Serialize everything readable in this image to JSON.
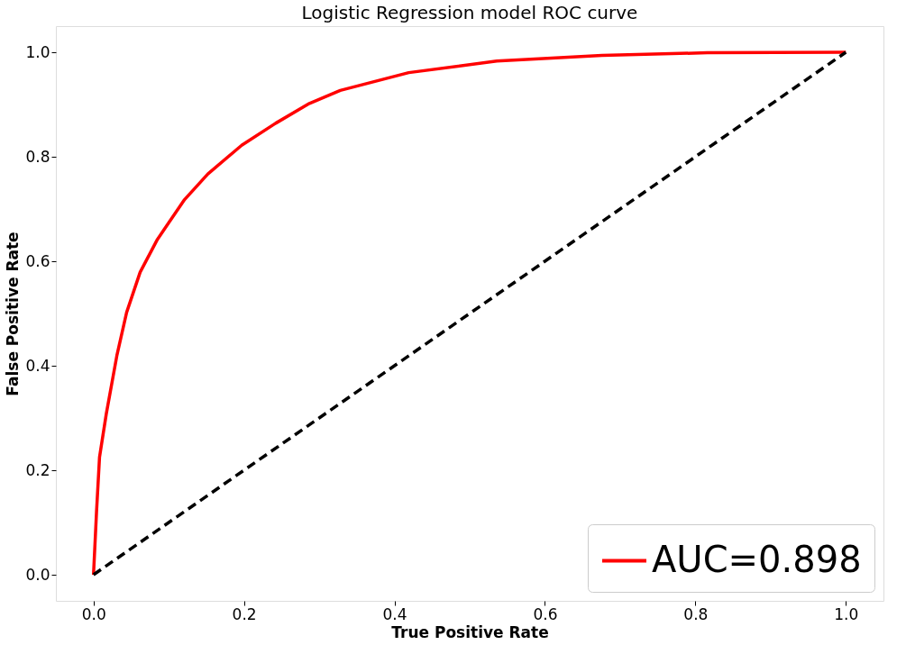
{
  "chart_data": {
    "type": "line",
    "title": "Logistic Regression model ROC curve",
    "xlabel": "True Positive Rate",
    "ylabel": "False Positive Rate",
    "xlim": [
      -0.05,
      1.05
    ],
    "ylim": [
      -0.05,
      1.05
    ],
    "xticks": [
      {
        "value": 0,
        "label": "0.0"
      },
      0.2,
      0.4,
      0.6,
      0.8,
      {
        "value": 1,
        "label": "1.0"
      }
    ],
    "yticks": [
      {
        "value": 0,
        "label": "0.0"
      },
      0.2,
      0.4,
      0.6,
      0.8,
      {
        "value": 1,
        "label": "1.0"
      }
    ],
    "grid": false,
    "legend": "bottom right",
    "marker": "none",
    "series": [
      {
        "name": "AUC=0.898",
        "color": "#ff0000",
        "line_style": "solid",
        "x": [
          0,
          0.004,
          0.008,
          0.017,
          0.031,
          0.044,
          0.062,
          0.085,
          0.121,
          0.152,
          0.197,
          0.242,
          0.287,
          0.328,
          0.419,
          0.536,
          0.676,
          0.816,
          1.0
        ],
        "values": [
          0,
          0.12,
          0.225,
          0.308,
          0.419,
          0.502,
          0.579,
          0.642,
          0.718,
          0.767,
          0.822,
          0.864,
          0.902,
          0.927,
          0.961,
          0.983,
          0.994,
          0.999,
          1.0
        ]
      },
      {
        "color": "#000000",
        "line_style": "dashed",
        "x": [
          0,
          1
        ],
        "values": [
          0,
          1
        ]
      }
    ]
  }
}
